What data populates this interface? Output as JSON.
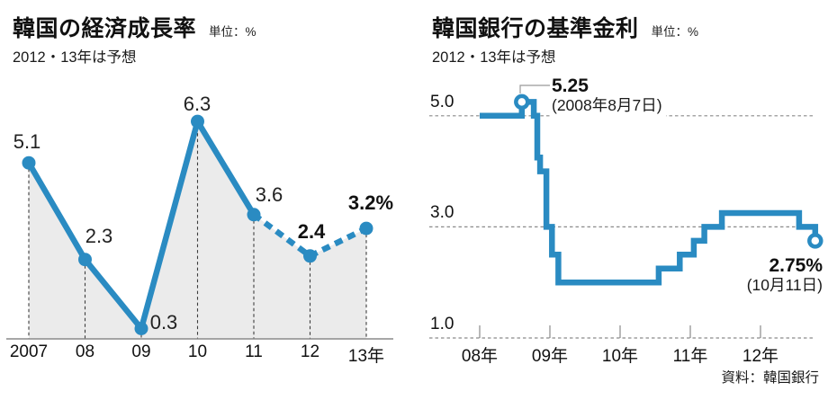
{
  "chart_data": [
    {
      "type": "line",
      "title": "韓国の経済成長率",
      "unit_label": "単位：%",
      "note": "2012・13年は予想",
      "categories": [
        "2007",
        "08",
        "09",
        "10",
        "11",
        "12",
        "13年"
      ],
      "values": [
        5.1,
        2.3,
        0.3,
        6.3,
        3.6,
        2.4,
        3.2
      ],
      "point_labels": [
        "5.1",
        "2.3",
        "0.3",
        "6.3",
        "3.6",
        "2.4",
        "3.2%"
      ],
      "forecast_years": [
        "12",
        "13年"
      ],
      "ylim": [
        0,
        6.8
      ],
      "line_color": "#2a8bc2",
      "area_fill": "#ebebeb",
      "legend": "solid = actual, dashed = forecast"
    },
    {
      "type": "step-line",
      "title": "韓国銀行の基準金利",
      "unit_label": "単位：%",
      "note": "2012・13年は予想",
      "x_tick_labels": [
        "08年",
        "09年",
        "10年",
        "11年",
        "12年"
      ],
      "y_tick_labels": [
        "5.0",
        "3.0",
        "1.0"
      ],
      "ylim": [
        1.0,
        5.6
      ],
      "steps": [
        [
          2008.0,
          5.0
        ],
        [
          2008.6,
          5.25
        ],
        [
          2008.77,
          5.0
        ],
        [
          2008.82,
          4.25
        ],
        [
          2008.86,
          4.0
        ],
        [
          2008.95,
          3.0
        ],
        [
          2009.03,
          2.5
        ],
        [
          2009.12,
          2.0
        ],
        [
          2010.55,
          2.25
        ],
        [
          2010.85,
          2.5
        ],
        [
          2011.05,
          2.75
        ],
        [
          2011.2,
          3.0
        ],
        [
          2011.45,
          3.25
        ],
        [
          2012.55,
          3.0
        ],
        [
          2012.78,
          2.75
        ]
      ],
      "annotations": [
        {
          "value_label": "5.25",
          "date_label": "(2008年8月7日)"
        },
        {
          "value_label": "2.75%",
          "date_label": "(10月11日)"
        }
      ],
      "line_color": "#2a8bc2",
      "source": "資料：韓国銀行"
    }
  ]
}
